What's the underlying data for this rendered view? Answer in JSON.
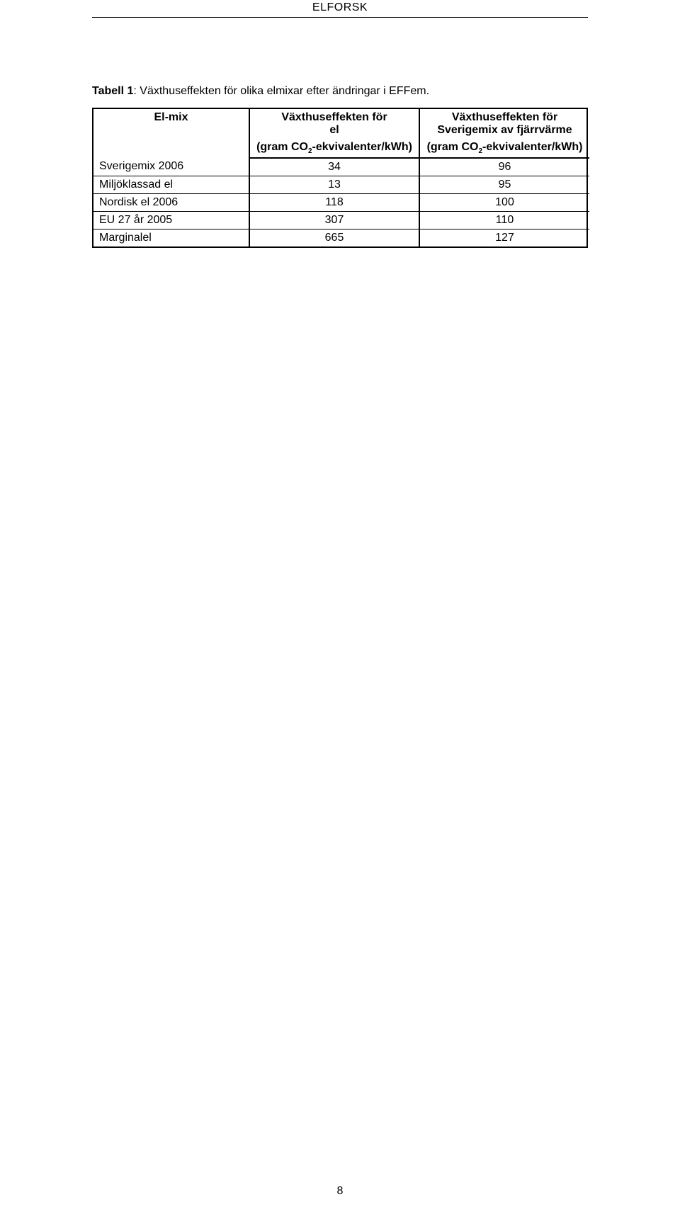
{
  "page": {
    "header": "ELFORSK",
    "number": "8"
  },
  "caption": {
    "label": "Tabell 1",
    "text": ": Växthuseffekten för olika elmixar efter ändringar i EFFem."
  },
  "table": {
    "columns": [
      {
        "title": "El-mix",
        "subtitle": ""
      },
      {
        "title_line1": "Växthuseffekten för",
        "title_line2": "el",
        "subtitle_prefix": "(gram CO",
        "subtitle_sub": "2",
        "subtitle_suffix": "-ekvivalenter/kWh)"
      },
      {
        "title_line1": "Växthuseffekten för",
        "title_line2": "Sverigemix av fjärrvärme",
        "subtitle_prefix": "(gram CO",
        "subtitle_sub": "2",
        "subtitle_suffix": "-ekvivalenter/kWh)"
      }
    ],
    "rows": [
      {
        "label": "Sverigemix 2006",
        "c1": "34",
        "c2": "96"
      },
      {
        "label": "Miljöklassad el",
        "c1": "13",
        "c2": "95"
      },
      {
        "label": "Nordisk el 2006",
        "c1": "118",
        "c2": "100"
      },
      {
        "label": "EU 27 år 2005",
        "c1": "307",
        "c2": "110"
      },
      {
        "label": "Marginalel",
        "c1": "665",
        "c2": "127"
      }
    ]
  }
}
